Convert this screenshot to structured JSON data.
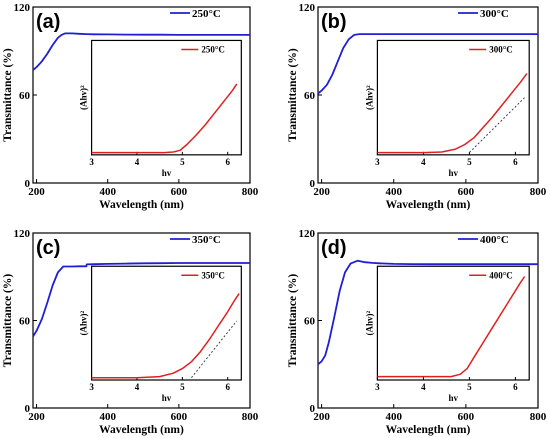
{
  "chart_data": [
    {
      "type": "line",
      "panel_label": "(a)",
      "legend": "250°C",
      "xlabel": "Wavelength (nm)",
      "ylabel": "Transmittance (%)",
      "xlim": [
        190,
        800
      ],
      "ylim": [
        0,
        120
      ],
      "xticks": [
        200,
        400,
        600,
        800
      ],
      "yticks": [
        0,
        60,
        120
      ],
      "series": [
        {
          "name": "250°C",
          "color": "#1f1fd6",
          "x": [
            190,
            200,
            215,
            230,
            245,
            260,
            270,
            280,
            290,
            300,
            320,
            340,
            360,
            400,
            450,
            500,
            550,
            600,
            650,
            700,
            750,
            800
          ],
          "y": [
            77,
            79,
            83,
            88,
            94,
            99,
            101,
            102,
            102,
            102,
            101.7,
            101.5,
            101.4,
            101.3,
            101.2,
            101.1,
            101.1,
            101,
            101,
            101,
            101,
            101
          ]
        }
      ],
      "inset": {
        "xlabel": "hv",
        "ylabel": "(Ahv)²",
        "xlim": [
          3,
          6.3
        ],
        "xticks": [
          3,
          4,
          5,
          6
        ],
        "legend": "250°C",
        "series": [
          {
            "name": "250°C",
            "color": "#e02020",
            "x": [
              3.0,
              4.0,
              4.6,
              4.8,
              4.95,
              5.1,
              5.3,
              5.5,
              5.7,
              5.9,
              6.1,
              6.2
            ],
            "y": [
              0.02,
              0.02,
              0.02,
              0.025,
              0.04,
              0.09,
              0.17,
              0.26,
              0.36,
              0.46,
              0.56,
              0.62
            ]
          }
        ],
        "tangent": null
      }
    },
    {
      "type": "line",
      "panel_label": "(b)",
      "legend": "300°C",
      "xlabel": "Wavelength (nm)",
      "ylabel": "Transmittance (%)",
      "xlim": [
        190,
        800
      ],
      "ylim": [
        0,
        120
      ],
      "xticks": [
        200,
        400,
        600,
        800
      ],
      "yticks": [
        0,
        60,
        120
      ],
      "series": [
        {
          "name": "300°C",
          "color": "#1f1fd6",
          "x": [
            190,
            200,
            215,
            230,
            245,
            260,
            275,
            290,
            305,
            320,
            340,
            360,
            400,
            450,
            500,
            550,
            600,
            650,
            700,
            750,
            800
          ],
          "y": [
            61,
            63,
            67,
            74,
            83,
            92,
            98,
            101,
            101.5,
            101.5,
            101.5,
            101.5,
            101.5,
            101.5,
            101.5,
            101.5,
            101.5,
            101.5,
            101.5,
            101.5,
            101.5
          ]
        }
      ],
      "inset": {
        "xlabel": "hv",
        "ylabel": "(Ahv)²",
        "xlim": [
          3,
          6.3
        ],
        "xticks": [
          3,
          4,
          5,
          6
        ],
        "legend": "300°C",
        "series": [
          {
            "name": "300°C",
            "color": "#e02020",
            "x": [
              3.0,
              4.0,
              4.4,
              4.7,
              4.9,
              5.1,
              5.3,
              5.5,
              5.7,
              5.9,
              6.1,
              6.25
            ],
            "y": [
              0.02,
              0.02,
              0.025,
              0.05,
              0.09,
              0.15,
              0.24,
              0.33,
              0.43,
              0.53,
              0.63,
              0.71
            ]
          }
        ],
        "tangent": {
          "x": [
            5.0,
            6.2
          ],
          "y": [
            0.02,
            0.5
          ]
        }
      }
    },
    {
      "type": "line",
      "panel_label": "(c)",
      "legend": "350°C",
      "xlabel": "Wavelength (nm)",
      "ylabel": "Transmittance (%)",
      "xlim": [
        190,
        800
      ],
      "ylim": [
        0,
        120
      ],
      "xticks": [
        200,
        400,
        600,
        800
      ],
      "yticks": [
        0,
        60,
        120
      ],
      "series": [
        {
          "name": "350°C",
          "color": "#1f1fd6",
          "x": [
            190,
            200,
            215,
            230,
            245,
            260,
            275,
            290,
            300,
            320,
            340,
            341,
            360,
            400,
            450,
            500,
            550,
            600,
            650,
            700,
            750,
            800
          ],
          "y": [
            49,
            53,
            61,
            72,
            84,
            93,
            97,
            97,
            97,
            97.2,
            97.2,
            98.5,
            98.6,
            98.8,
            99,
            99.2,
            99.3,
            99.4,
            99.4,
            99.4,
            99.4,
            99.4
          ]
        }
      ],
      "inset": {
        "xlabel": "hv",
        "ylabel": "(Ahv)²",
        "xlim": [
          3,
          6.3
        ],
        "xticks": [
          3,
          4,
          5,
          6
        ],
        "legend": "350°C",
        "series": [
          {
            "name": "350°C",
            "color": "#e02020",
            "x": [
              3.0,
              4.0,
              4.5,
              4.8,
              5.0,
              5.2,
              5.4,
              5.6,
              5.8,
              6.0,
              6.15,
              6.25
            ],
            "y": [
              0.02,
              0.02,
              0.03,
              0.06,
              0.1,
              0.16,
              0.25,
              0.36,
              0.48,
              0.6,
              0.7,
              0.76
            ]
          }
        ],
        "tangent": {
          "x": [
            5.2,
            6.2
          ],
          "y": [
            0.02,
            0.52
          ]
        }
      }
    },
    {
      "type": "line",
      "panel_label": "(d)",
      "legend": "400°C",
      "xlabel": "Wavelength (nm)",
      "ylabel": "Transmittance (%)",
      "xlim": [
        190,
        800
      ],
      "ylim": [
        0,
        120
      ],
      "xticks": [
        200,
        400,
        600,
        800
      ],
      "yticks": [
        0,
        60,
        120
      ],
      "series": [
        {
          "name": "400°C",
          "color": "#1f1fd6",
          "x": [
            190,
            200,
            210,
            220,
            235,
            250,
            265,
            280,
            300,
            320,
            340,
            360,
            400,
            450,
            500,
            550,
            600,
            650,
            700,
            750,
            800
          ],
          "y": [
            30,
            32,
            36,
            45,
            62,
            80,
            93,
            99,
            101,
            100,
            99.5,
            99.2,
            98.8,
            98.7,
            98.6,
            98.6,
            98.6,
            98.6,
            98.6,
            98.6,
            98.6
          ]
        }
      ],
      "inset": {
        "xlabel": "hv",
        "ylabel": "(Ahv)²",
        "xlim": [
          3,
          6.3
        ],
        "xticks": [
          3,
          4,
          5,
          6
        ],
        "legend": "400°C",
        "series": [
          {
            "name": "400°C",
            "color": "#e02020",
            "x": [
              3.0,
              4.0,
              4.6,
              4.8,
              4.95,
              5.1,
              5.3,
              5.5,
              5.7,
              5.9,
              6.1,
              6.2
            ],
            "y": [
              0.03,
              0.03,
              0.03,
              0.05,
              0.1,
              0.2,
              0.33,
              0.46,
              0.59,
              0.72,
              0.85,
              0.91
            ]
          }
        ],
        "tangent": null
      }
    }
  ]
}
